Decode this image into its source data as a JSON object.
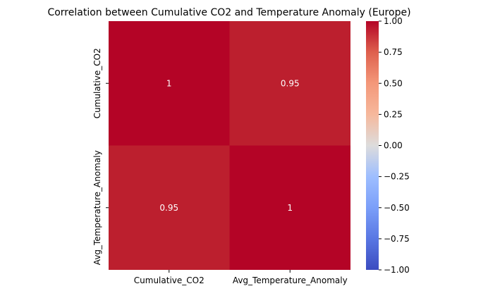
{
  "chart_data": {
    "type": "heatmap",
    "title": "Correlation between Cumulative CO2 and Temperature Anomaly (Europe)",
    "xlabel": "",
    "ylabel": "",
    "x_categories": [
      "Cumulative_CO2",
      "Avg_Temperature_Anomaly"
    ],
    "y_categories": [
      "Cumulative_CO2",
      "Avg_Temperature_Anomaly"
    ],
    "values": [
      [
        1,
        0.95
      ],
      [
        0.95,
        1
      ]
    ],
    "annotations": [
      [
        "1",
        "0.95"
      ],
      [
        "0.95",
        "1"
      ]
    ],
    "colormap": "coolwarm",
    "vmin": -1,
    "vmax": 1,
    "colorbar": {
      "ticks": [
        1.0,
        0.75,
        0.5,
        0.25,
        0.0,
        -0.25,
        -0.5,
        -0.75,
        -1.0
      ],
      "tick_labels": [
        "1.00",
        "0.75",
        "0.50",
        "0.25",
        "0.00",
        "−0.25",
        "−0.50",
        "−0.75",
        "−1.00"
      ]
    },
    "colors": {
      "value_1_00": "#b40426",
      "value_0_95": "#bc1f2e",
      "annotation_text": "#ffffff"
    }
  }
}
